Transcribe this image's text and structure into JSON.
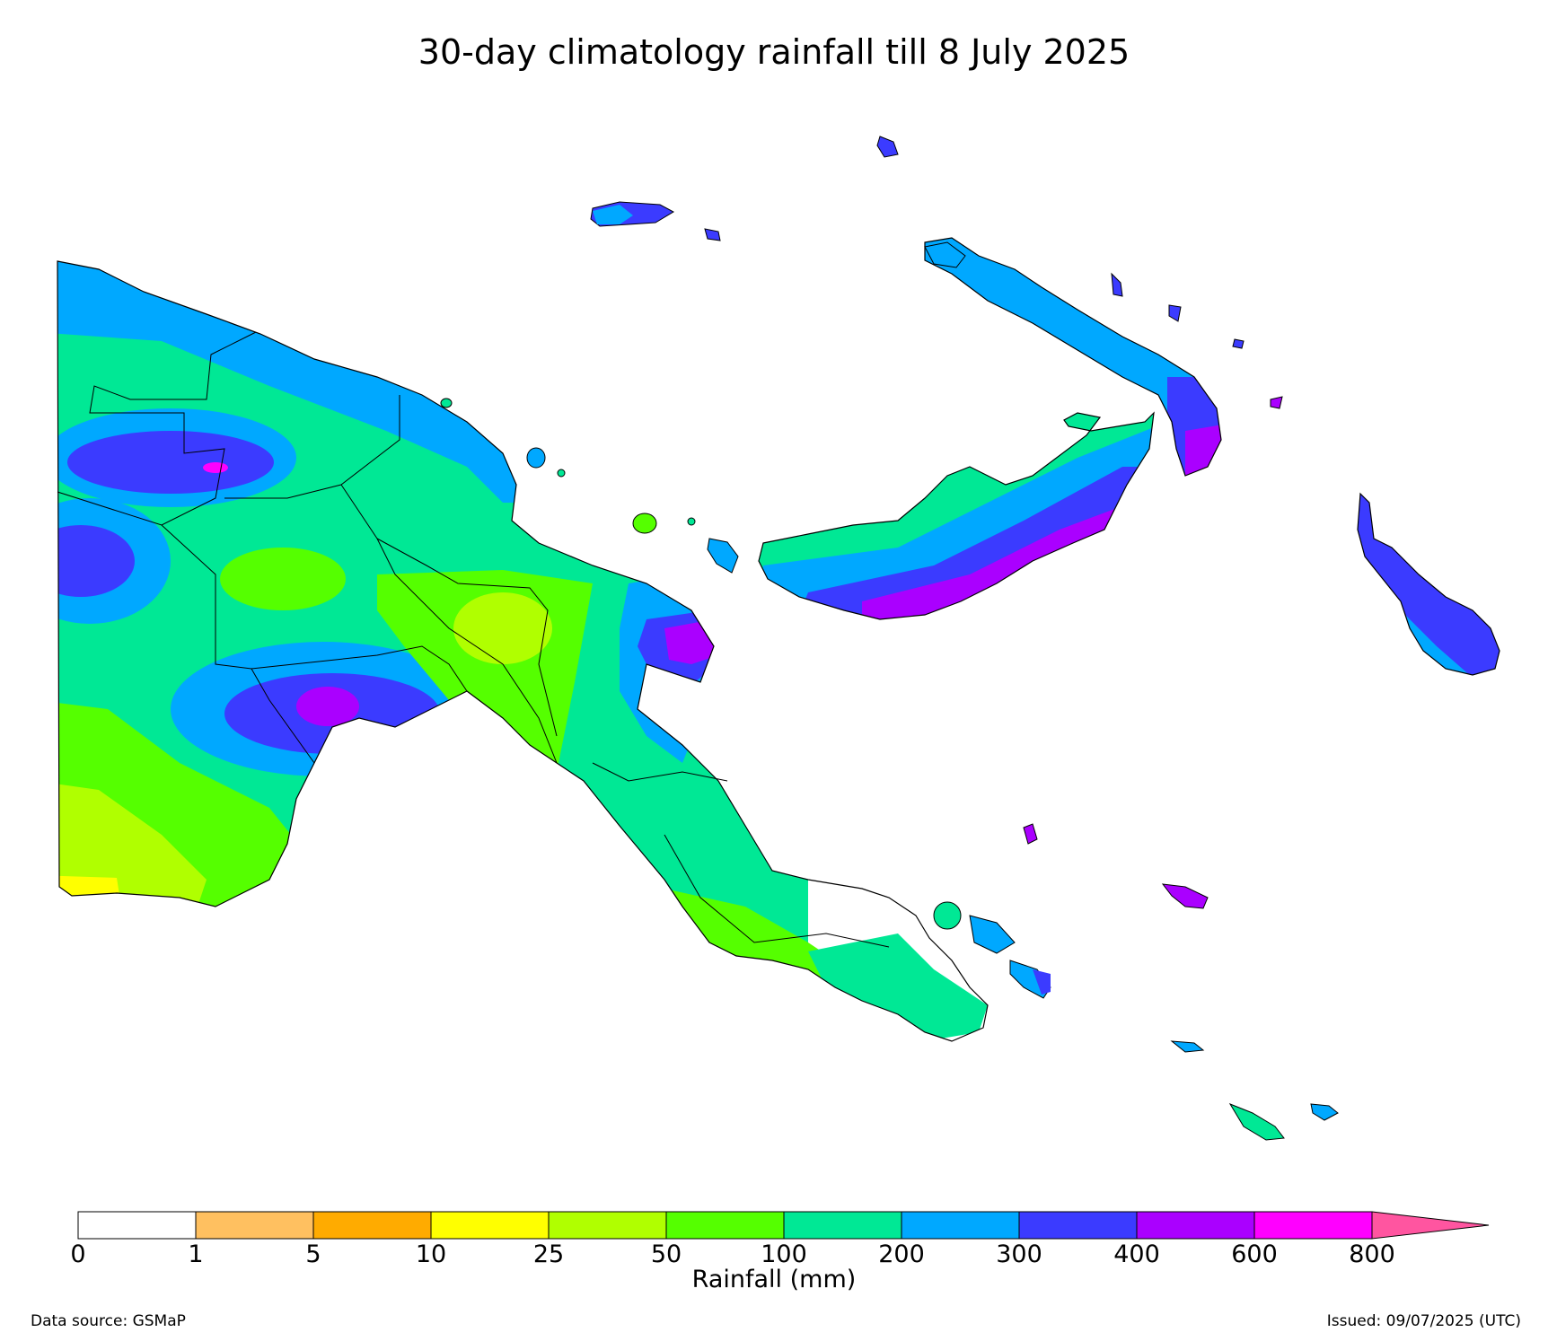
{
  "title": "30-day climatology rainfall till 8 July 2025",
  "colorbar": {
    "label": "Rainfall (mm)",
    "ticks": [
      "0",
      "1",
      "5",
      "10",
      "25",
      "50",
      "100",
      "200",
      "300",
      "400",
      "600",
      "800"
    ],
    "colors": [
      "#ffffff",
      "#ffc060",
      "#ffab00",
      "#ffff00",
      "#b0ff00",
      "#55ff00",
      "#00e895",
      "#00a8ff",
      "#3b3bff",
      "#aa00ff",
      "#ff00ff"
    ],
    "extend_color": "#ff55a0"
  },
  "footer": {
    "source": "Data source: GSMaP",
    "issued": "Issued: 09/07/2025 (UTC)"
  }
}
